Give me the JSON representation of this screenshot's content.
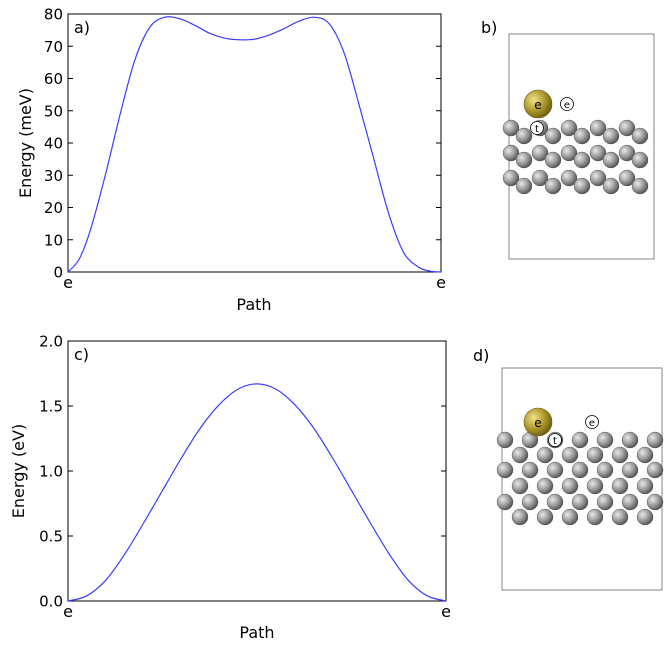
{
  "chart_data": [
    {
      "type": "line",
      "panel_label": "a)",
      "xlabel": "Path",
      "ylabel": "Energy (meV)",
      "ylim": [
        0,
        80
      ],
      "yticks": [
        "0",
        "10",
        "20",
        "30",
        "40",
        "50",
        "60",
        "70",
        "80"
      ],
      "xtick_labels": [
        "e",
        "e"
      ],
      "grid": false,
      "line_color": "#3b3bff",
      "series": [
        {
          "x": [
            0,
            0.03,
            0.06,
            0.1,
            0.14,
            0.18,
            0.22,
            0.26,
            0.3,
            0.34,
            0.38,
            0.42,
            0.46,
            0.5,
            0.54,
            0.58,
            0.62,
            0.66,
            0.7,
            0.74,
            0.78,
            0.82,
            0.86,
            0.9,
            0.94,
            0.97,
            1
          ],
          "values": [
            0,
            4,
            13,
            30,
            49,
            66,
            76,
            79,
            78.5,
            76.5,
            74,
            72.5,
            72,
            72.2,
            73.5,
            75.5,
            77.8,
            79,
            77,
            68,
            52,
            35,
            18,
            6,
            1.5,
            0.3,
            0
          ]
        }
      ]
    },
    {
      "type": "line",
      "panel_label": "c)",
      "xlabel": "Path",
      "ylabel": "Energy (eV)",
      "ylim": [
        0,
        2.0
      ],
      "yticks": [
        "0.0",
        "0.5",
        "1.0",
        "1.5",
        "2.0"
      ],
      "xtick_labels": [
        "e",
        "e"
      ],
      "grid": false,
      "line_color": "#3b3bff",
      "series": [
        {
          "x": [
            0,
            0.05,
            0.1,
            0.15,
            0.2,
            0.25,
            0.3,
            0.35,
            0.4,
            0.45,
            0.5,
            0.55,
            0.6,
            0.65,
            0.7,
            0.75,
            0.8,
            0.85,
            0.9,
            0.95,
            1
          ],
          "values": [
            0,
            0.04,
            0.16,
            0.36,
            0.6,
            0.85,
            1.1,
            1.33,
            1.51,
            1.63,
            1.67,
            1.63,
            1.51,
            1.33,
            1.1,
            0.85,
            0.6,
            0.36,
            0.16,
            0.04,
            0
          ]
        }
      ]
    }
  ],
  "structure_panels": [
    {
      "panel_label": "b)",
      "adatom_label": "e",
      "marker_labels": [
        "e",
        "t"
      ],
      "atom_color": "#8a8a8a",
      "adatom_color": "#b09a2c"
    },
    {
      "panel_label": "d)",
      "adatom_label": "e",
      "marker_labels": [
        "e",
        "t"
      ],
      "atom_color": "#8a8a8a",
      "adatom_color": "#b09a2c"
    }
  ]
}
